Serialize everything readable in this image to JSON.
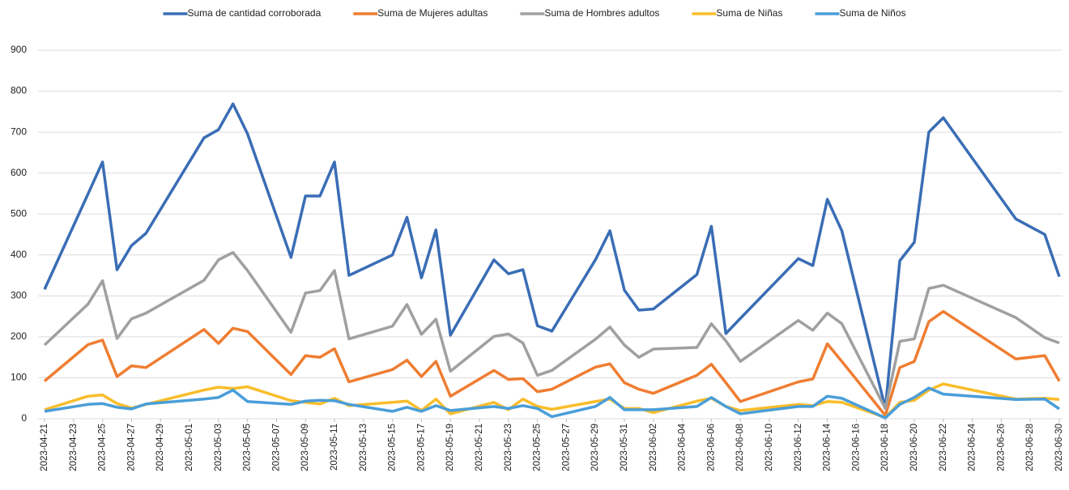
{
  "chart_data": {
    "type": "line",
    "x": [
      "2023-04-21",
      "2023-04-24",
      "2023-04-25",
      "2023-04-26",
      "2023-04-27",
      "2023-04-28",
      "2023-05-02",
      "2023-05-03",
      "2023-05-04",
      "2023-05-05",
      "2023-05-08",
      "2023-05-09",
      "2023-05-10",
      "2023-05-11",
      "2023-05-12",
      "2023-05-15",
      "2023-05-16",
      "2023-05-17",
      "2023-05-18",
      "2023-05-19",
      "2023-05-22",
      "2023-05-23",
      "2023-05-24",
      "2023-05-25",
      "2023-05-26",
      "2023-05-29",
      "2023-05-30",
      "2023-05-31",
      "2023-06-01",
      "2023-06-02",
      "2023-06-05",
      "2023-06-06",
      "2023-06-07",
      "2023-06-08",
      "2023-06-12",
      "2023-06-13",
      "2023-06-14",
      "2023-06-15",
      "2023-06-18",
      "2023-06-19",
      "2023-06-20",
      "2023-06-21",
      "2023-06-22",
      "2023-06-27",
      "2023-06-29",
      "2023-06-30"
    ],
    "series": [
      {
        "name": "Suma de cantidad corroborada",
        "color": "#3a6db5",
        "values": [
          316,
          549,
          627,
          364,
          423,
          453,
          686,
          706,
          769,
          696,
          394,
          544,
          544,
          627,
          350,
          400,
          492,
          344,
          461,
          204,
          388,
          354,
          364,
          227,
          214,
          388,
          459,
          314,
          265,
          268,
          352,
          470,
          208,
          245,
          391,
          374,
          536,
          459,
          25,
          386,
          431,
          700,
          735,
          488,
          450,
          347
        ]
      },
      {
        "name": "Suma de Mujeres adultas",
        "color": "#ef7d32",
        "values": [
          92,
          181,
          192,
          103,
          129,
          125,
          218,
          184,
          221,
          213,
          108,
          154,
          150,
          171,
          90,
          120,
          143,
          103,
          140,
          55,
          118,
          96,
          98,
          66,
          72,
          126,
          134,
          88,
          72,
          62,
          106,
          133,
          88,
          42,
          90,
          97,
          183,
          140,
          8,
          125,
          140,
          237,
          262,
          146,
          154,
          92
        ]
      },
      {
        "name": "Suma de Hombres adultos",
        "color": "#a0a0a0",
        "values": [
          180,
          280,
          337,
          196,
          244,
          258,
          338,
          388,
          406,
          362,
          211,
          307,
          313,
          362,
          195,
          226,
          279,
          206,
          243,
          116,
          201,
          207,
          185,
          106,
          118,
          194,
          224,
          180,
          150,
          170,
          174,
          232,
          190,
          140,
          240,
          216,
          258,
          232,
          25,
          189,
          195,
          318,
          326,
          247,
          198,
          185
        ]
      },
      {
        "name": "Suma de Niñas",
        "color": "#f9bd2a",
        "values": [
          22,
          55,
          58,
          37,
          26,
          35,
          70,
          77,
          74,
          78,
          44,
          40,
          36,
          50,
          32,
          40,
          43,
          20,
          48,
          12,
          40,
          22,
          48,
          30,
          23,
          42,
          48,
          25,
          25,
          15,
          43,
          50,
          30,
          20,
          35,
          32,
          42,
          40,
          3,
          40,
          45,
          70,
          85,
          48,
          50,
          47
        ]
      },
      {
        "name": "Suma de Niños",
        "color": "#4a9ed8",
        "values": [
          18,
          35,
          37,
          28,
          24,
          36,
          48,
          52,
          70,
          42,
          35,
          43,
          45,
          44,
          35,
          18,
          28,
          18,
          32,
          20,
          30,
          25,
          32,
          25,
          5,
          30,
          52,
          22,
          22,
          22,
          30,
          52,
          30,
          12,
          30,
          30,
          55,
          50,
          2,
          35,
          52,
          75,
          60,
          47,
          48,
          24
        ]
      }
    ],
    "xlim": [
      "2023-04-21",
      "2023-06-30"
    ],
    "xticks": [
      "2023-04-21",
      "2023-04-23",
      "2023-04-25",
      "2023-04-27",
      "2023-04-29",
      "2023-05-01",
      "2023-05-03",
      "2023-05-05",
      "2023-05-07",
      "2023-05-09",
      "2023-05-11",
      "2023-05-13",
      "2023-05-15",
      "2023-05-17",
      "2023-05-19",
      "2023-05-21",
      "2023-05-23",
      "2023-05-25",
      "2023-05-27",
      "2023-05-29",
      "2023-05-31",
      "2023-06-02",
      "2023-06-04",
      "2023-06-06",
      "2023-06-08",
      "2023-06-10",
      "2023-06-12",
      "2023-06-14",
      "2023-06-16",
      "2023-06-18",
      "2023-06-20",
      "2023-06-22",
      "2023-06-24",
      "2023-06-26",
      "2023-06-28",
      "2023-06-30"
    ],
    "ylim": [
      0,
      900
    ],
    "yticks": [
      0,
      100,
      200,
      300,
      400,
      500,
      600,
      700,
      800,
      900
    ],
    "grid": true,
    "legend": "top"
  }
}
